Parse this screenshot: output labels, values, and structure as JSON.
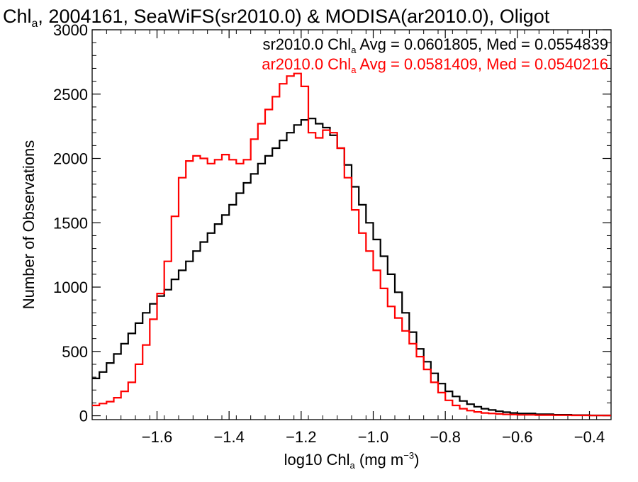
{
  "chart_data": {
    "type": "line",
    "step": true,
    "title": {
      "prefix": "Chl",
      "sub": "a",
      "rest": ", 2004161, SeaWiFS(sr2010.0) & MODISA(ar2010.0), Oligot"
    },
    "xlabel": {
      "prefix": "log10 Chl",
      "sub": "a",
      "mid": " (mg m",
      "sup": "−3",
      "end": ")"
    },
    "ylabel": "Number of Observations",
    "xlim": [
      -1.78,
      -0.34
    ],
    "ylim": [
      -30,
      3000
    ],
    "x_ticks": [
      -1.6,
      -1.4,
      -1.2,
      -1.0,
      -0.8,
      -0.6,
      -0.4
    ],
    "x_tick_labels": [
      "−1.6",
      "−1.4",
      "−1.2",
      "−1.0",
      "−0.8",
      "−0.6",
      "−0.4"
    ],
    "y_ticks": [
      0,
      500,
      1000,
      1500,
      2000,
      2500,
      3000
    ],
    "y_tick_labels": [
      "0",
      "500",
      "1000",
      "1500",
      "2000",
      "2500",
      "3000"
    ],
    "grid": false,
    "legend_position": "top-right",
    "annotations": [
      {
        "series": "sr2010.0",
        "color": "#000000",
        "pre": "sr2010.0 Chl",
        "sub": "a",
        "post": " Avg = 0.0601805, Med = 0.0554839"
      },
      {
        "series": "ar2010.0",
        "color": "#ff0000",
        "pre": "ar2010.0 Chl",
        "sub": "a",
        "post": " Avg = 0.0581409, Med = 0.0540216"
      }
    ],
    "series": [
      {
        "name": "sr2010.0",
        "color": "#000000",
        "x": [
          -1.78,
          -1.76,
          -1.74,
          -1.72,
          -1.7,
          -1.68,
          -1.66,
          -1.64,
          -1.62,
          -1.6,
          -1.58,
          -1.56,
          -1.54,
          -1.52,
          -1.5,
          -1.48,
          -1.46,
          -1.44,
          -1.42,
          -1.4,
          -1.38,
          -1.36,
          -1.34,
          -1.32,
          -1.3,
          -1.28,
          -1.26,
          -1.24,
          -1.22,
          -1.2,
          -1.18,
          -1.16,
          -1.14,
          -1.12,
          -1.1,
          -1.08,
          -1.06,
          -1.04,
          -1.02,
          -1.0,
          -0.98,
          -0.96,
          -0.94,
          -0.92,
          -0.9,
          -0.88,
          -0.86,
          -0.84,
          -0.82,
          -0.8,
          -0.78,
          -0.76,
          -0.74,
          -0.72,
          -0.7,
          -0.68,
          -0.66,
          -0.64,
          -0.62,
          -0.6,
          -0.55,
          -0.5,
          -0.45,
          -0.4,
          -0.34
        ],
        "y": [
          290,
          340,
          410,
          480,
          560,
          640,
          720,
          800,
          870,
          930,
          980,
          1060,
          1130,
          1200,
          1280,
          1350,
          1420,
          1490,
          1560,
          1640,
          1730,
          1810,
          1880,
          1960,
          2020,
          2080,
          2140,
          2200,
          2260,
          2300,
          2310,
          2270,
          2240,
          2180,
          2080,
          1950,
          1780,
          1640,
          1500,
          1370,
          1240,
          1100,
          960,
          800,
          650,
          520,
          420,
          330,
          250,
          190,
          150,
          115,
          90,
          70,
          55,
          45,
          35,
          28,
          22,
          18,
          12,
          8,
          5,
          3,
          2
        ]
      },
      {
        "name": "ar2010.0",
        "color": "#ff0000",
        "x": [
          -1.78,
          -1.76,
          -1.74,
          -1.72,
          -1.7,
          -1.68,
          -1.66,
          -1.64,
          -1.62,
          -1.6,
          -1.58,
          -1.56,
          -1.54,
          -1.52,
          -1.5,
          -1.48,
          -1.46,
          -1.44,
          -1.42,
          -1.4,
          -1.38,
          -1.36,
          -1.34,
          -1.32,
          -1.3,
          -1.28,
          -1.26,
          -1.24,
          -1.22,
          -1.2,
          -1.18,
          -1.16,
          -1.14,
          -1.12,
          -1.1,
          -1.08,
          -1.06,
          -1.04,
          -1.02,
          -1.0,
          -0.98,
          -0.96,
          -0.94,
          -0.92,
          -0.9,
          -0.88,
          -0.86,
          -0.84,
          -0.82,
          -0.8,
          -0.78,
          -0.76,
          -0.74,
          -0.72,
          -0.7,
          -0.68,
          -0.66,
          -0.64,
          -0.62,
          -0.6,
          -0.55,
          -0.5,
          -0.45,
          -0.4,
          -0.34
        ],
        "y": [
          80,
          95,
          110,
          140,
          190,
          260,
          400,
          550,
          750,
          950,
          1200,
          1550,
          1850,
          1980,
          2020,
          2000,
          1960,
          1990,
          2030,
          1990,
          1960,
          1990,
          2150,
          2270,
          2380,
          2480,
          2580,
          2640,
          2660,
          2560,
          2200,
          2160,
          2220,
          2200,
          2080,
          1850,
          1600,
          1420,
          1280,
          1130,
          990,
          850,
          760,
          660,
          560,
          460,
          360,
          260,
          180,
          120,
          80,
          55,
          40,
          30,
          22,
          18,
          14,
          11,
          9,
          7,
          5,
          4,
          3,
          2,
          1
        ]
      }
    ]
  }
}
